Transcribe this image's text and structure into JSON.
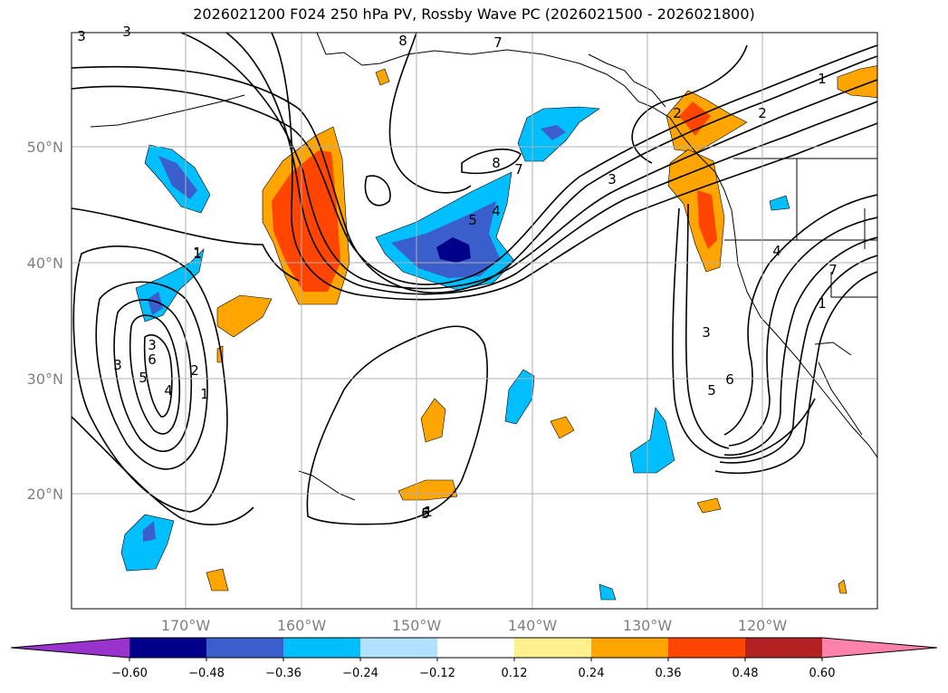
{
  "title": "2026021200 F024 250 hPa PV, Rossby Wave PC (2026021500 - 2026021800)",
  "axes": {
    "lat_ticks": [
      "50°N",
      "40°N",
      "30°N",
      "20°N"
    ],
    "lon_ticks": [
      "170°W",
      "160°W",
      "150°W",
      "140°W",
      "130°W",
      "120°W"
    ]
  },
  "colorbar": {
    "labels": [
      "−0.60",
      "−0.48",
      "−0.36",
      "−0.24",
      "−0.12",
      "0.12",
      "0.24",
      "0.36",
      "0.48",
      "0.60"
    ],
    "colors": [
      "#9a32cd",
      "#00008b",
      "#3a5fcd",
      "#00bfff",
      "#b0e2ff",
      "#ffffff",
      "#fff08f",
      "#ffa500",
      "#ff4500",
      "#b22222",
      "#ff82ab"
    ]
  },
  "contour_labels": [
    "3",
    "8",
    "7",
    "1",
    "2",
    "1",
    "2",
    "8",
    "7",
    "3",
    "5",
    "4",
    "1",
    "4",
    "7",
    "1",
    "3",
    "3",
    "6",
    "5",
    "4",
    "2",
    "1",
    "3",
    "5",
    "6",
    "3",
    "5",
    "6",
    "1"
  ]
}
